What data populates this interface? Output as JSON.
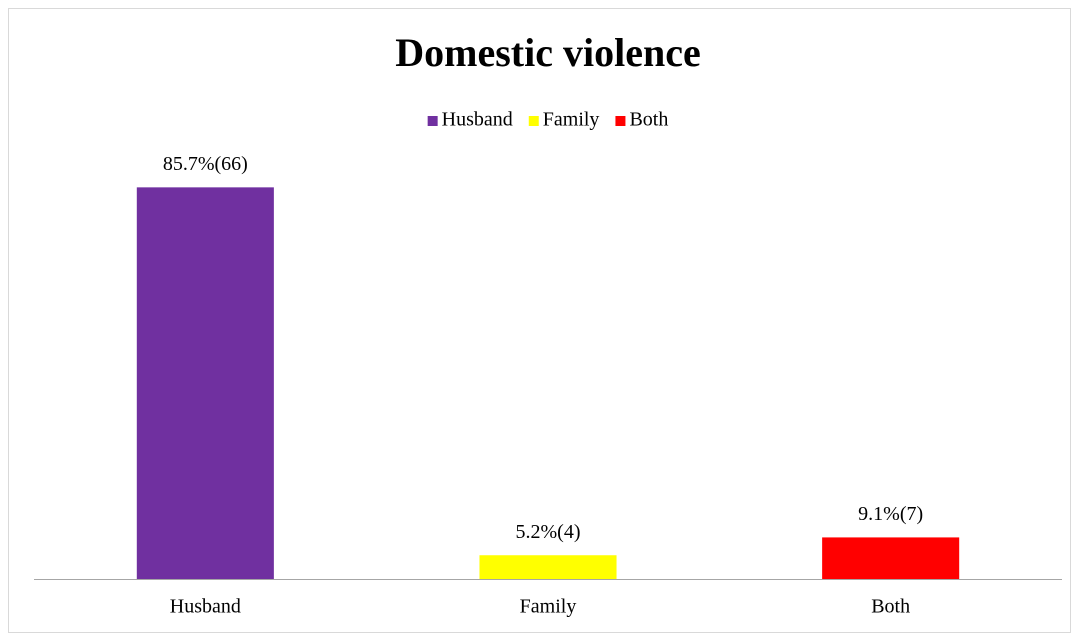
{
  "chart_data": {
    "type": "bar",
    "title": "Domestic violence",
    "categories": [
      "Husband",
      "Family",
      "Both"
    ],
    "values": [
      85.7,
      5.2,
      9.1
    ],
    "value_labels": [
      "85.7%(66)",
      "5.2%(4)",
      "9.1%(7)"
    ],
    "colors": [
      "#7030a0",
      "#ffff00",
      "#ff0000"
    ],
    "ylim": [
      0,
      100
    ]
  }
}
